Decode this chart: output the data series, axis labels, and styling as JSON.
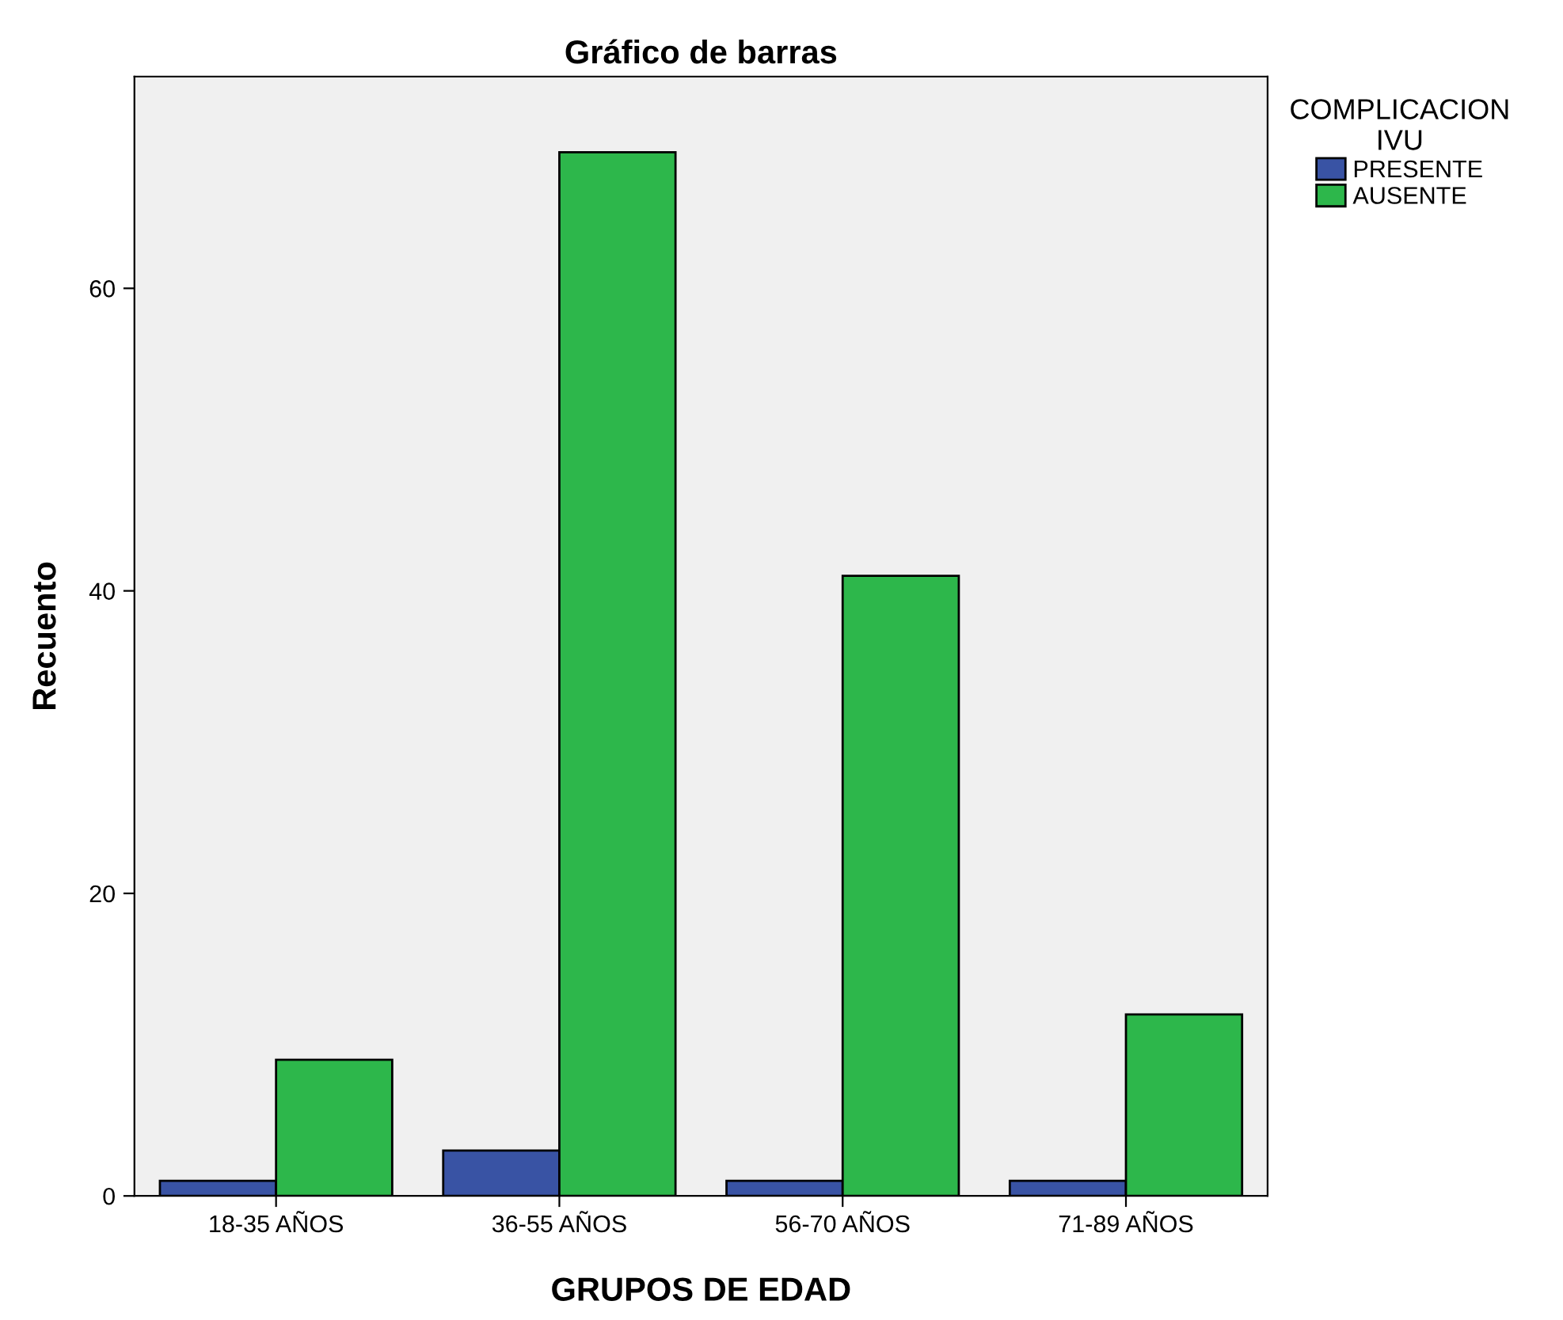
{
  "chart_data": {
    "type": "bar",
    "title": "Gráfico de barras",
    "xlabel": "GRUPOS DE EDAD",
    "ylabel": "Recuento",
    "legend_title": "COMPLICACION\nIVU",
    "categories": [
      "18-35 AÑOS",
      "36-55 AÑOS",
      "56-70 AÑOS",
      "71-89 AÑOS"
    ],
    "series": [
      {
        "name": "PRESENTE",
        "color": "#3953a4",
        "values": [
          1,
          3,
          1,
          1
        ]
      },
      {
        "name": "AUSENTE",
        "color": "#2db74b",
        "values": [
          9,
          69,
          41,
          12
        ]
      }
    ],
    "ylim": [
      0,
      74
    ],
    "yticks": [
      0,
      20,
      40,
      60
    ],
    "grid": false,
    "legend": "top right"
  }
}
